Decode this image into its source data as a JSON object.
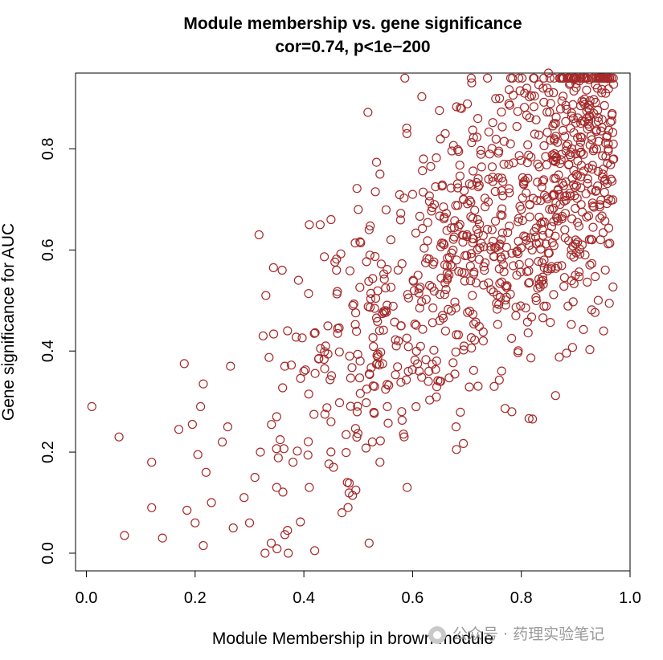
{
  "chart_data": {
    "type": "scatter",
    "title": "Module membership vs. gene significance",
    "subtitle": "cor=0.74, p<1e−200",
    "xlabel": "Module Membership in brown module",
    "ylabel": "Gene significance for  AUC",
    "xlim": [
      -0.02,
      1.0
    ],
    "ylim": [
      -0.035,
      0.95
    ],
    "xticks": [
      0.0,
      0.2,
      0.4,
      0.6,
      0.8,
      1.0
    ],
    "xtick_labels": [
      "0.0",
      "0.2",
      "0.4",
      "0.6",
      "0.8",
      "1.0"
    ],
    "yticks": [
      0.0,
      0.2,
      0.4,
      0.6,
      0.8
    ],
    "ytick_labels": [
      "0.0",
      "0.2",
      "0.4",
      "0.6",
      "0.8"
    ],
    "grid": false,
    "legend": "none",
    "marker": "open-circle",
    "point_color": "#a52a2a",
    "points": [
      [
        0.01,
        0.29
      ],
      [
        0.06,
        0.23
      ],
      [
        0.07,
        0.035
      ],
      [
        0.12,
        0.18
      ],
      [
        0.12,
        0.09
      ],
      [
        0.14,
        0.03
      ],
      [
        0.17,
        0.245
      ],
      [
        0.18,
        0.375
      ],
      [
        0.185,
        0.085
      ],
      [
        0.195,
        0.255
      ],
      [
        0.2,
        0.06
      ],
      [
        0.205,
        0.195
      ],
      [
        0.21,
        0.29
      ],
      [
        0.215,
        0.335
      ],
      [
        0.22,
        0.16
      ],
      [
        0.215,
        0.015
      ],
      [
        0.23,
        0.1
      ],
      [
        0.25,
        0.22
      ],
      [
        0.26,
        0.25
      ],
      [
        0.265,
        0.37
      ],
      [
        0.27,
        0.05
      ],
      [
        0.29,
        0.11
      ],
      [
        0.3,
        0.06
      ],
      [
        0.31,
        0.15
      ],
      [
        0.32,
        0.2
      ],
      [
        0.325,
        0.43
      ],
      [
        0.33,
        0.51
      ],
      [
        0.34,
        0.02
      ],
      [
        0.35,
        0.13
      ],
      [
        0.35,
        0.27
      ],
      [
        0.36,
        0.56
      ],
      [
        0.365,
        0.37
      ],
      [
        0.37,
        0.045
      ],
      [
        0.37,
        0.44
      ],
      [
        0.38,
        0.18
      ],
      [
        0.39,
        0.54
      ],
      [
        0.4,
        0.36
      ],
      [
        0.41,
        0.65
      ],
      [
        0.41,
        0.13
      ],
      [
        0.42,
        0.005
      ],
      [
        0.43,
        0.65
      ],
      [
        0.44,
        0.41
      ],
      [
        0.45,
        0.26
      ],
      [
        0.45,
        0.66
      ],
      [
        0.46,
        0.56
      ],
      [
        0.47,
        0.08
      ],
      [
        0.48,
        0.14
      ],
      [
        0.49,
        0.49
      ],
      [
        0.5,
        0.68
      ],
      [
        0.52,
        0.02
      ],
      [
        0.52,
        0.64
      ],
      [
        0.53,
        0.33
      ],
      [
        0.54,
        0.75
      ],
      [
        0.54,
        0.18
      ],
      [
        0.55,
        0.48
      ],
      [
        0.56,
        0.62
      ],
      [
        0.57,
        0.41
      ],
      [
        0.58,
        0.28
      ],
      [
        0.59,
        0.13
      ],
      [
        0.6,
        0.71
      ],
      [
        0.61,
        0.55
      ],
      [
        0.62,
        0.78
      ],
      [
        0.63,
        0.36
      ],
      [
        0.64,
        0.69
      ],
      [
        0.65,
        0.46
      ],
      [
        0.66,
        0.83
      ],
      [
        0.67,
        0.57
      ],
      [
        0.68,
        0.25
      ],
      [
        0.69,
        0.88
      ],
      [
        0.7,
        0.63
      ],
      [
        0.71,
        0.51
      ],
      [
        0.72,
        0.86
      ],
      [
        0.73,
        0.42
      ],
      [
        0.74,
        0.74
      ],
      [
        0.75,
        0.33
      ],
      [
        0.76,
        0.9
      ],
      [
        0.77,
        0.59
      ],
      [
        0.78,
        0.81
      ],
      [
        0.79,
        0.47
      ],
      [
        0.8,
        0.68
      ],
      [
        0.81,
        0.92
      ],
      [
        0.82,
        0.6
      ],
      [
        0.83,
        0.77
      ],
      [
        0.84,
        0.54
      ],
      [
        0.85,
        0.95
      ],
      [
        0.86,
        0.85
      ],
      [
        0.87,
        0.71
      ],
      [
        0.88,
        0.64
      ],
      [
        0.89,
        0.93
      ],
      [
        0.9,
        0.79
      ],
      [
        0.91,
        0.69
      ],
      [
        0.92,
        0.86
      ],
      [
        0.93,
        0.62
      ],
      [
        0.94,
        0.92
      ],
      [
        0.95,
        0.75
      ],
      [
        0.96,
        0.81
      ],
      [
        0.965,
        0.74
      ],
      [
        0.97,
        0.78
      ],
      [
        0.955,
        0.91
      ],
      [
        0.96,
        0.8
      ]
    ],
    "background_cloud": {
      "count": 900,
      "x_range": [
        0.3,
        0.97
      ],
      "trend": {
        "intercept": -0.08,
        "slope": 0.95
      },
      "y_spread": 0.15
    }
  },
  "watermark": {
    "icon": "wechat-public-account-icon",
    "text": "公众号 · 药理实验笔记"
  }
}
